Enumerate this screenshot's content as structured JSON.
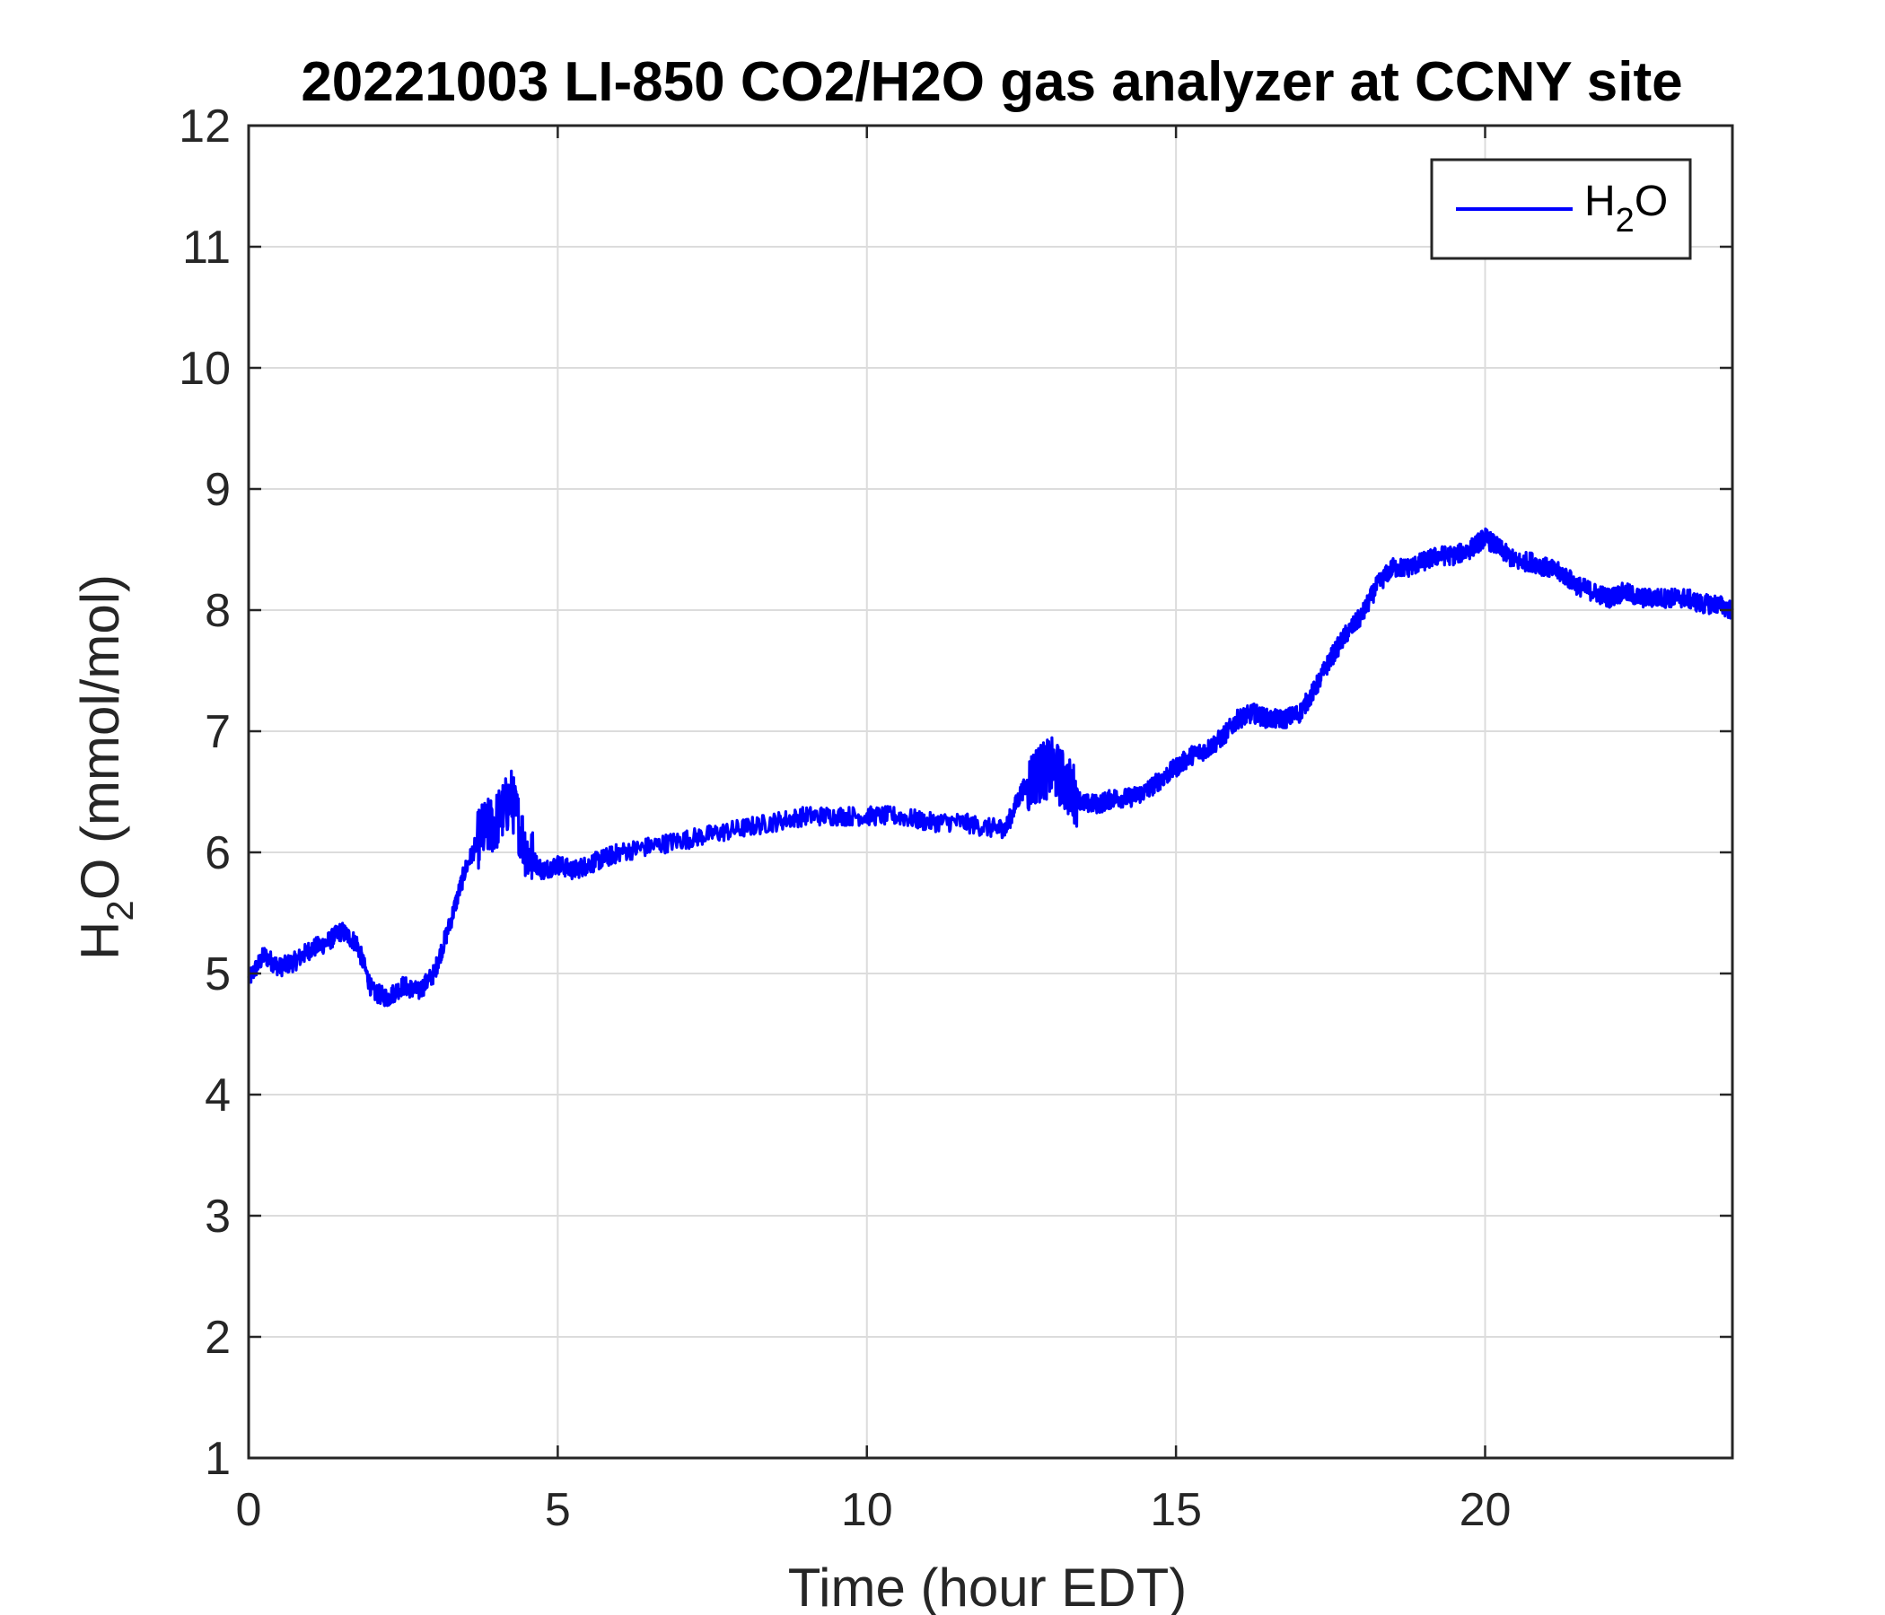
{
  "chart_data": {
    "type": "line",
    "title": "20221003 LI-850 CO2/H2O gas analyzer at CCNY site",
    "xlabel": "Time (hour EDT)",
    "ylabel": {
      "main": "H",
      "sub": "2",
      "rest": "O (mmol/mol)"
    },
    "xlim": [
      0,
      24
    ],
    "ylim": [
      1,
      12
    ],
    "xticks": [
      0,
      5,
      10,
      15,
      20
    ],
    "yticks": [
      1,
      2,
      3,
      4,
      5,
      6,
      7,
      8,
      9,
      10,
      11,
      12
    ],
    "grid": true,
    "legend_position": "top-right",
    "series": [
      {
        "name": {
          "main": "H",
          "sub": "2",
          "rest": "O"
        },
        "color": "#0000ff",
        "x": [
          0.0,
          0.25,
          0.5,
          0.75,
          1.0,
          1.25,
          1.5,
          1.75,
          2.0,
          2.25,
          2.5,
          2.75,
          3.0,
          3.25,
          3.5,
          3.75,
          4.0,
          4.25,
          4.5,
          4.75,
          5.0,
          5.25,
          5.5,
          5.75,
          6.0,
          6.5,
          7.0,
          7.5,
          8.0,
          8.5,
          9.0,
          9.5,
          10.0,
          10.5,
          11.0,
          11.5,
          12.0,
          12.25,
          12.5,
          12.75,
          13.0,
          13.25,
          13.5,
          13.75,
          14.0,
          14.25,
          14.5,
          14.75,
          15.0,
          15.25,
          15.5,
          15.75,
          16.0,
          16.25,
          16.5,
          16.75,
          17.0,
          17.25,
          17.5,
          17.75,
          18.0,
          18.25,
          18.5,
          18.75,
          19.0,
          19.25,
          19.5,
          19.75,
          20.0,
          20.25,
          20.5,
          20.75,
          21.0,
          21.25,
          21.5,
          21.75,
          22.0,
          22.25,
          22.5,
          22.75,
          23.0,
          23.25,
          23.5,
          23.75,
          24.0
        ],
        "y": [
          4.95,
          5.15,
          5.05,
          5.1,
          5.2,
          5.25,
          5.35,
          5.25,
          4.85,
          4.8,
          4.9,
          4.85,
          5.0,
          5.4,
          5.85,
          6.15,
          6.25,
          6.45,
          6.0,
          5.85,
          5.9,
          5.85,
          5.9,
          5.95,
          6.0,
          6.05,
          6.1,
          6.15,
          6.2,
          6.25,
          6.3,
          6.3,
          6.3,
          6.3,
          6.25,
          6.25,
          6.2,
          6.2,
          6.5,
          6.65,
          6.7,
          6.55,
          6.4,
          6.4,
          6.45,
          6.45,
          6.5,
          6.6,
          6.7,
          6.8,
          6.85,
          6.95,
          7.1,
          7.15,
          7.1,
          7.1,
          7.15,
          7.35,
          7.6,
          7.8,
          7.95,
          8.2,
          8.35,
          8.35,
          8.4,
          8.45,
          8.45,
          8.5,
          8.6,
          8.5,
          8.4,
          8.4,
          8.35,
          8.3,
          8.2,
          8.15,
          8.1,
          8.15,
          8.1,
          8.1,
          8.1,
          8.1,
          8.05,
          8.05,
          8.0
        ]
      }
    ]
  }
}
